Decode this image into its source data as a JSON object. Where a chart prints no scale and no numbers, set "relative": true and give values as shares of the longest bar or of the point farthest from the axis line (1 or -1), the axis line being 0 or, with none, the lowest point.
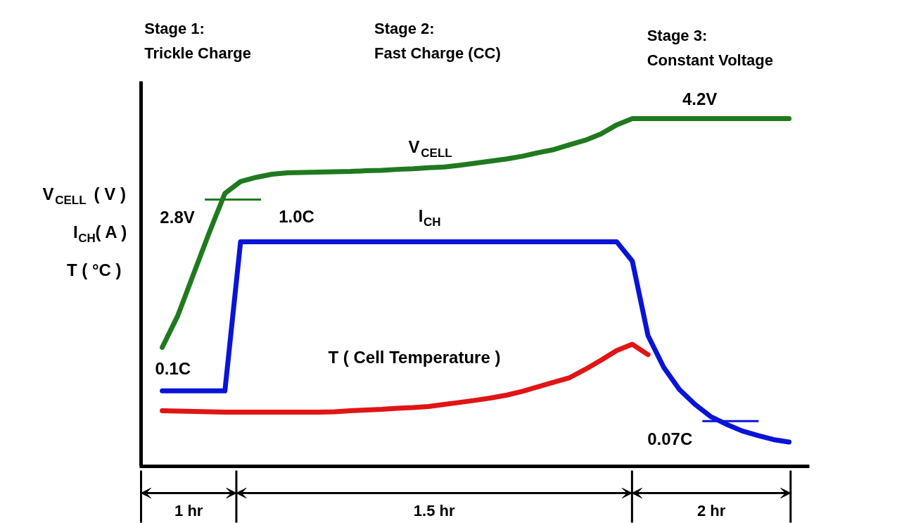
{
  "chart_data": {
    "type": "line",
    "relative": true,
    "ylabel": "V$_{CELL}$ ( V )\nI$_{CH}$( A )\nT ( °C )",
    "categories": [
      null,
      null,
      null,
      null,
      null,
      null,
      null,
      null,
      null,
      null,
      null,
      null,
      null,
      null,
      null,
      null,
      null,
      null,
      null,
      null,
      null,
      null,
      null,
      null,
      null,
      null,
      null,
      null,
      null,
      null,
      null,
      null,
      null,
      null,
      null,
      null,
      null,
      null,
      null,
      null,
      null
    ],
    "series": [
      {
        "name": "V$_{CELL}$",
        "color": "#1f7a1f",
        "values": [
          0.342,
          0.434,
          0.553,
          0.672,
          0.785,
          0.819,
          0.831,
          0.84,
          0.844,
          0.845,
          0.846,
          0.847,
          0.848,
          0.85,
          0.851,
          0.854,
          0.856,
          0.859,
          0.861,
          0.866,
          0.872,
          0.878,
          0.884,
          0.892,
          0.902,
          0.911,
          0.925,
          0.938,
          0.956,
          0.982,
          1,
          1,
          1,
          1,
          1,
          1,
          1,
          1,
          1,
          1,
          1
        ]
      },
      {
        "name": "I$_{CH}$",
        "color": "#0a14d8",
        "values": [
          0.217,
          0.217,
          0.217,
          0.217,
          0.217,
          0.646,
          0.646,
          0.646,
          0.646,
          0.646,
          0.646,
          0.646,
          0.646,
          0.646,
          0.646,
          0.646,
          0.646,
          0.646,
          0.646,
          0.646,
          0.646,
          0.646,
          0.646,
          0.646,
          0.646,
          0.646,
          0.646,
          0.646,
          0.646,
          0.646,
          0.59,
          0.376,
          0.285,
          0.221,
          0.178,
          0.143,
          0.121,
          0.102,
          0.089,
          0.077,
          0.07
        ]
      },
      {
        "name": "T ( Cell Temperature )",
        "color": "#e01515",
        "values": [
          0.16,
          0.159,
          0.158,
          0.157,
          0.156,
          0.156,
          0.156,
          0.156,
          0.156,
          0.156,
          0.156,
          0.157,
          0.16,
          0.162,
          0.164,
          0.167,
          0.169,
          0.172,
          0.178,
          0.184,
          0.19,
          0.197,
          0.205,
          0.216,
          0.229,
          0.242,
          0.255,
          0.279,
          0.305,
          0.333,
          0.351,
          0.321,
          null,
          null,
          null,
          null,
          null,
          null,
          null,
          null,
          null
        ]
      }
    ],
    "ref_lines": [
      {
        "axis": "y",
        "value": 0.767,
        "label": "2.8V",
        "color": "#1f7a1f"
      },
      {
        "axis": "y",
        "value": 0.13,
        "label": "0.07C",
        "color": "#0a14d8"
      }
    ],
    "annotations": [
      "Stage 1:\nTrickle Charge",
      "Stage 2:\nFast Charge (CC)",
      "Stage 3:\nConstant Voltage",
      "1 hr",
      "1.5 hr",
      "2 hr",
      "1.0C",
      "0.1C",
      "4.2V"
    ]
  }
}
